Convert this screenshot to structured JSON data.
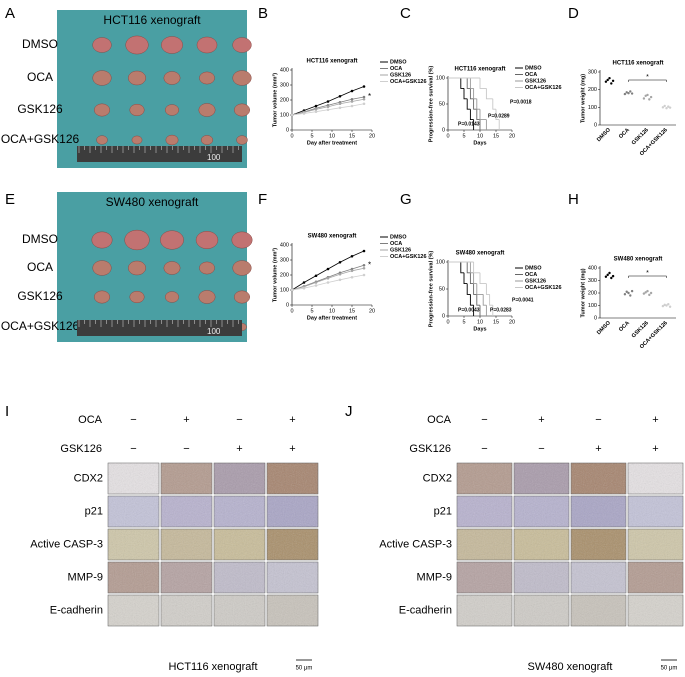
{
  "panel_labels": [
    "A",
    "B",
    "C",
    "D",
    "E",
    "F",
    "G",
    "H",
    "I",
    "J"
  ],
  "photos": [
    {
      "title": "HCT116 xenograft",
      "rows": [
        "DMSO",
        "OCA",
        "GSK126",
        "OCA+GSK126"
      ],
      "ruler": "100"
    },
    {
      "title": "SW480 xenograft",
      "rows": [
        "DMSO",
        "OCA",
        "GSK126",
        "OCA+GSK126"
      ],
      "ruler": "100"
    }
  ],
  "chart_data": [
    {
      "type": "line",
      "title": "HCT116 xenograft",
      "x_label": "Day after treatment",
      "y_label": "Tumor volume (mm³)",
      "x": [
        0,
        3,
        6,
        9,
        12,
        15,
        18
      ],
      "xlim": [
        0,
        20
      ],
      "xticks": [
        0,
        5,
        10,
        15,
        20
      ],
      "ylim": [
        0,
        400
      ],
      "yticks": [
        0,
        100,
        200,
        300,
        400
      ],
      "annotation": "*",
      "series": [
        {
          "name": "DMSO",
          "color": "#000000",
          "values": [
            100,
            130,
            160,
            190,
            225,
            260,
            290
          ]
        },
        {
          "name": "OCA",
          "color": "#7f7f7f",
          "values": [
            100,
            120,
            145,
            165,
            185,
            205,
            220
          ]
        },
        {
          "name": "GSK126",
          "color": "#a6a6a6",
          "values": [
            100,
            118,
            138,
            155,
            175,
            190,
            205
          ]
        },
        {
          "name": "OCA+GSK126",
          "color": "#cfcfcf",
          "values": [
            100,
            110,
            122,
            135,
            148,
            160,
            175
          ]
        }
      ]
    },
    {
      "type": "survival",
      "title": "HCT116 xenograft",
      "x_label": "Days",
      "y_label": "Progression-free survival (%)",
      "xlim": [
        0,
        20
      ],
      "xticks": [
        0,
        5,
        10,
        15,
        20
      ],
      "ylim": [
        0,
        100
      ],
      "yticks": [
        0,
        50,
        100
      ],
      "annotations": [
        "P=0.0143",
        "P=0.0289",
        "P=0.0018"
      ],
      "series": [
        {
          "name": "DMSO",
          "color": "#000000",
          "x": [
            0,
            4,
            5,
            6,
            7,
            8
          ],
          "values": [
            100,
            80,
            60,
            40,
            20,
            0
          ]
        },
        {
          "name": "OCA",
          "color": "#666666",
          "x": [
            0,
            6,
            7,
            8,
            9,
            10
          ],
          "values": [
            100,
            80,
            60,
            40,
            20,
            0
          ]
        },
        {
          "name": "GSK126",
          "color": "#999999",
          "x": [
            0,
            7,
            8,
            9,
            10,
            12
          ],
          "values": [
            100,
            80,
            60,
            40,
            20,
            0
          ]
        },
        {
          "name": "OCA+GSK126",
          "color": "#c8c8c8",
          "x": [
            0,
            10,
            12,
            14,
            15,
            16
          ],
          "values": [
            100,
            80,
            60,
            40,
            20,
            0
          ]
        }
      ]
    },
    {
      "type": "dot",
      "title": "HCT116 xenograft",
      "y_label": "Tumor weight (mg)",
      "ylim": [
        0,
        300
      ],
      "yticks": [
        0,
        100,
        200,
        300
      ],
      "annotation": "*",
      "categories": [
        "DMSO",
        "OCA",
        "GSK126",
        "OCA+GSK126"
      ],
      "colors": [
        "#000000",
        "#7f7f7f",
        "#a6a6a6",
        "#cfcfcf"
      ],
      "values": [
        [
          245,
          255,
          265,
          235,
          250
        ],
        [
          175,
          185,
          180,
          190,
          178
        ],
        [
          150,
          165,
          170,
          145,
          158
        ],
        [
          100,
          108,
          95,
          104,
          98
        ]
      ]
    },
    {
      "type": "line",
      "title": "SW480 xenograft",
      "x_label": "Day after treatment",
      "y_label": "Tumor volume (mm³)",
      "x": [
        0,
        3,
        6,
        9,
        12,
        15,
        18
      ],
      "xlim": [
        0,
        20
      ],
      "xticks": [
        0,
        5,
        10,
        15,
        20
      ],
      "ylim": [
        0,
        400
      ],
      "yticks": [
        0,
        100,
        200,
        300,
        400
      ],
      "annotation": "*",
      "series": [
        {
          "name": "DMSO",
          "color": "#000000",
          "values": [
            100,
            150,
            195,
            240,
            285,
            325,
            360
          ]
        },
        {
          "name": "OCA",
          "color": "#7f7f7f",
          "values": [
            100,
            125,
            155,
            185,
            215,
            240,
            265
          ]
        },
        {
          "name": "GSK126",
          "color": "#a6a6a6",
          "values": [
            100,
            122,
            150,
            178,
            205,
            228,
            245
          ]
        },
        {
          "name": "OCA+GSK126",
          "color": "#cfcfcf",
          "values": [
            100,
            112,
            130,
            150,
            168,
            185,
            200
          ]
        }
      ]
    },
    {
      "type": "survival",
      "title": "SW480 xenograft",
      "x_label": "Days",
      "y_label": "Progression-free survival (%)",
      "xlim": [
        0,
        20
      ],
      "xticks": [
        0,
        5,
        10,
        15,
        20
      ],
      "ylim": [
        0,
        100
      ],
      "yticks": [
        0,
        50,
        100
      ],
      "annotations": [
        "P=0.0043",
        "P=0.0283",
        "P=0.0041"
      ],
      "series": [
        {
          "name": "DMSO",
          "color": "#000000",
          "x": [
            0,
            4,
            5,
            6,
            7,
            8
          ],
          "values": [
            100,
            80,
            60,
            40,
            20,
            0
          ]
        },
        {
          "name": "OCA",
          "color": "#666666",
          "x": [
            0,
            6,
            7,
            8,
            9,
            10
          ],
          "values": [
            100,
            80,
            60,
            40,
            20,
            0
          ]
        },
        {
          "name": "GSK126",
          "color": "#999999",
          "x": [
            0,
            7,
            8,
            9,
            11,
            12
          ],
          "values": [
            100,
            80,
            60,
            40,
            20,
            0
          ]
        },
        {
          "name": "OCA+GSK126",
          "color": "#c8c8c8",
          "x": [
            0,
            8,
            10,
            12,
            13,
            14
          ],
          "values": [
            100,
            80,
            60,
            40,
            20,
            0
          ]
        }
      ]
    },
    {
      "type": "dot",
      "title": "SW480 xenograft",
      "y_label": "Tumor weight (mg)",
      "ylim": [
        0,
        400
      ],
      "yticks": [
        0,
        100,
        200,
        300,
        400
      ],
      "annotation": "*",
      "categories": [
        "DMSO",
        "OCA",
        "GSK126",
        "OCA+GSK126"
      ],
      "colors": [
        "#000000",
        "#7f7f7f",
        "#a6a6a6",
        "#cfcfcf"
      ],
      "values": [
        [
          330,
          345,
          360,
          320,
          335
        ],
        [
          190,
          210,
          200,
          180,
          215
        ],
        [
          195,
          205,
          215,
          185,
          200
        ],
        [
          95,
          105,
          100,
          110,
          90
        ]
      ]
    }
  ],
  "ihc": [
    {
      "treatments": [
        {
          "name": "OCA",
          "signs": [
            "−",
            "+",
            "−",
            "+"
          ]
        },
        {
          "name": "GSK126",
          "signs": [
            "−",
            "−",
            "+",
            "+"
          ]
        }
      ],
      "markers": [
        "CDX2",
        "p21",
        "Active CASP-3",
        "MMP-9",
        "E-cadherin"
      ],
      "caption": "HCT116 xenograft",
      "scale": "50 μm"
    },
    {
      "treatments": [
        {
          "name": "OCA",
          "signs": [
            "−",
            "+",
            "−",
            "+"
          ]
        },
        {
          "name": "GSK126",
          "signs": [
            "−",
            "−",
            "+",
            "+"
          ]
        }
      ],
      "markers": [
        "CDX2",
        "p21",
        "Active CASP-3",
        "MMP-9",
        "E-cadherin"
      ],
      "caption": "SW480 xenograft",
      "scale": "50 μm"
    }
  ]
}
